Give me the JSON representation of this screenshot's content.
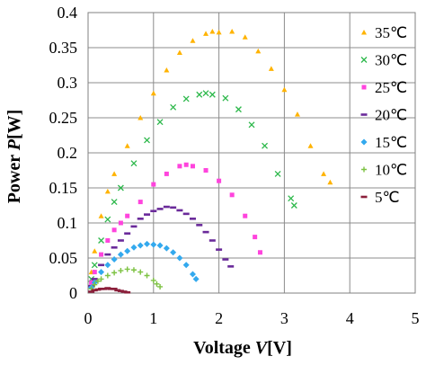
{
  "chart_data": {
    "type": "scatter",
    "xlabel": {
      "pre": "Voltage ",
      "italic": "V",
      "post": "[V]"
    },
    "ylabel": {
      "pre": "Power ",
      "italic": "P",
      "post": "[W]"
    },
    "xlim": [
      0,
      5
    ],
    "ylim": [
      0,
      0.4
    ],
    "xticks": [
      "0",
      "1",
      "2",
      "3",
      "4",
      "5"
    ],
    "yticks": [
      "0",
      "0.05",
      "0.1",
      "0.15",
      "0.2",
      "0.25",
      "0.3",
      "0.35",
      "0.4"
    ],
    "grid": true,
    "legend_position": "right",
    "series": [
      {
        "name": "35℃",
        "color": "#FFB300",
        "marker": "triangle",
        "x": [
          0.05,
          0.1,
          0.2,
          0.3,
          0.4,
          0.6,
          0.8,
          1.0,
          1.2,
          1.4,
          1.6,
          1.8,
          1.9,
          2.0,
          2.2,
          2.4,
          2.6,
          2.8,
          3.0,
          3.2,
          3.4,
          3.6,
          3.7
        ],
        "y": [
          0.03,
          0.06,
          0.11,
          0.145,
          0.17,
          0.21,
          0.25,
          0.285,
          0.318,
          0.343,
          0.36,
          0.37,
          0.373,
          0.372,
          0.373,
          0.365,
          0.345,
          0.32,
          0.29,
          0.255,
          0.21,
          0.17,
          0.158
        ]
      },
      {
        "name": "30℃",
        "color": "#2DB84B",
        "marker": "x",
        "x": [
          0.05,
          0.1,
          0.2,
          0.3,
          0.4,
          0.5,
          0.7,
          0.9,
          1.1,
          1.3,
          1.5,
          1.7,
          1.8,
          1.9,
          2.1,
          2.3,
          2.5,
          2.7,
          2.9,
          3.1,
          3.15
        ],
        "y": [
          0.02,
          0.04,
          0.075,
          0.105,
          0.13,
          0.15,
          0.185,
          0.218,
          0.244,
          0.265,
          0.277,
          0.283,
          0.285,
          0.283,
          0.278,
          0.262,
          0.24,
          0.21,
          0.17,
          0.135,
          0.125
        ]
      },
      {
        "name": "25℃",
        "color": "#FF44DD",
        "marker": "square",
        "x": [
          0.05,
          0.1,
          0.2,
          0.3,
          0.4,
          0.5,
          0.6,
          0.8,
          1.0,
          1.2,
          1.4,
          1.5,
          1.6,
          1.8,
          2.0,
          2.2,
          2.4,
          2.55,
          2.63
        ],
        "y": [
          0.015,
          0.03,
          0.055,
          0.075,
          0.09,
          0.1,
          0.11,
          0.13,
          0.155,
          0.17,
          0.181,
          0.183,
          0.181,
          0.175,
          0.16,
          0.14,
          0.11,
          0.08,
          0.058
        ]
      },
      {
        "name": "20℃",
        "color": "#6A2A9A",
        "marker": "dash",
        "x": [
          0.05,
          0.1,
          0.2,
          0.3,
          0.4,
          0.5,
          0.6,
          0.7,
          0.8,
          0.9,
          1.0,
          1.1,
          1.2,
          1.3,
          1.4,
          1.5,
          1.6,
          1.7,
          1.8,
          1.9,
          2.0,
          2.1,
          2.18
        ],
        "y": [
          0.01,
          0.02,
          0.04,
          0.055,
          0.065,
          0.075,
          0.085,
          0.095,
          0.106,
          0.112,
          0.117,
          0.12,
          0.123,
          0.122,
          0.118,
          0.113,
          0.106,
          0.097,
          0.087,
          0.075,
          0.062,
          0.048,
          0.038
        ]
      },
      {
        "name": "15℃",
        "color": "#33A9EE",
        "marker": "diamond",
        "x": [
          0.05,
          0.1,
          0.2,
          0.3,
          0.4,
          0.5,
          0.6,
          0.7,
          0.8,
          0.9,
          1.0,
          1.1,
          1.2,
          1.3,
          1.4,
          1.5,
          1.6,
          1.65
        ],
        "y": [
          0.008,
          0.015,
          0.03,
          0.04,
          0.048,
          0.055,
          0.06,
          0.065,
          0.068,
          0.07,
          0.069,
          0.068,
          0.064,
          0.058,
          0.05,
          0.04,
          0.027,
          0.02
        ]
      },
      {
        "name": "10℃",
        "color": "#7DC242",
        "marker": "plus",
        "x": [
          0.05,
          0.1,
          0.15,
          0.2,
          0.3,
          0.4,
          0.5,
          0.6,
          0.7,
          0.8,
          0.9,
          1.0,
          1.05,
          1.1
        ],
        "y": [
          0.006,
          0.012,
          0.017,
          0.02,
          0.025,
          0.029,
          0.032,
          0.034,
          0.033,
          0.03,
          0.025,
          0.018,
          0.013,
          0.009
        ]
      },
      {
        "name": "5℃",
        "color": "#8B1F3A",
        "marker": "dash",
        "x": [
          0.05,
          0.1,
          0.15,
          0.2,
          0.25,
          0.3,
          0.35,
          0.4,
          0.45,
          0.5,
          0.55,
          0.6
        ],
        "y": [
          0.002,
          0.004,
          0.005,
          0.006,
          0.006,
          0.007,
          0.006,
          0.006,
          0.004,
          0.003,
          0.002,
          0.001
        ]
      }
    ]
  }
}
